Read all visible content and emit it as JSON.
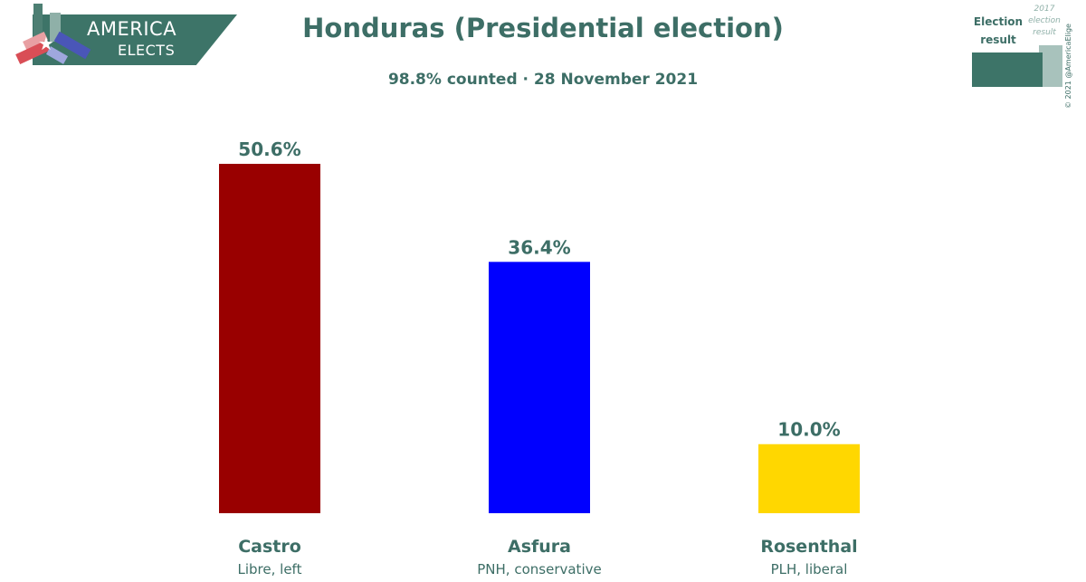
{
  "logo": {
    "line1": "AMERICA",
    "line2": "ELECTS"
  },
  "header": {
    "title": "Honduras (Presidential election)",
    "subtitle": "98.8% counted · 28 November 2021"
  },
  "legend": {
    "current_label": "Election result",
    "previous_label": "2017 election result",
    "copyright": "© 2021 @AmericaElige"
  },
  "colors": {
    "accent": "#3d6e66",
    "castro": "#990000",
    "asfura": "#0000ff",
    "rosenthal": "#ffd700"
  },
  "chart_data": {
    "type": "bar",
    "categories": [
      "Castro",
      "Asfura",
      "Rosenthal"
    ],
    "subcategories": [
      "Libre, left",
      "PNH, conservative",
      "PLH, liberal"
    ],
    "values": [
      50.6,
      36.4,
      10.0
    ],
    "value_labels": [
      "50.6%",
      "36.4%",
      "10.0%"
    ],
    "colors": [
      "#990000",
      "#0000ff",
      "#ffd700"
    ],
    "title": "Honduras (Presidential election)",
    "subtitle": "98.8% counted · 28 November 2021",
    "xlabel": "",
    "ylabel": "",
    "ylim": [
      0,
      50.6
    ],
    "grid": false
  }
}
